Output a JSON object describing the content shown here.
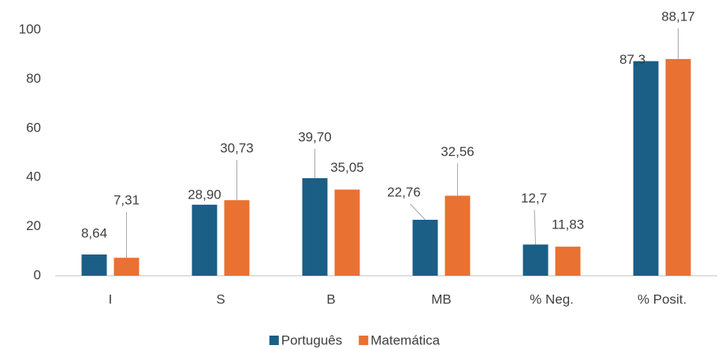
{
  "chart_data": {
    "type": "bar",
    "categories": [
      "I",
      "S",
      "B",
      "MB",
      "% Neg.",
      "% Posit."
    ],
    "series": [
      {
        "name": "Português",
        "color": "#1b5e86",
        "values": [
          8.64,
          28.9,
          39.7,
          22.76,
          12.7,
          87.3
        ],
        "value_labels": [
          "8,64",
          "28,90",
          "39,70",
          "22,76",
          "12,7",
          "87,3"
        ]
      },
      {
        "name": "Matemática",
        "color": "#e97132",
        "values": [
          7.31,
          30.73,
          35.05,
          32.56,
          11.83,
          88.17
        ],
        "value_labels": [
          "7,31",
          "30,73",
          "35,05",
          "32,56",
          "11,83",
          "88,17"
        ]
      }
    ],
    "ylim": [
      0,
      100
    ],
    "yticks": [
      0,
      20,
      40,
      60,
      80,
      100
    ],
    "grid": false,
    "legend": "bottom"
  }
}
